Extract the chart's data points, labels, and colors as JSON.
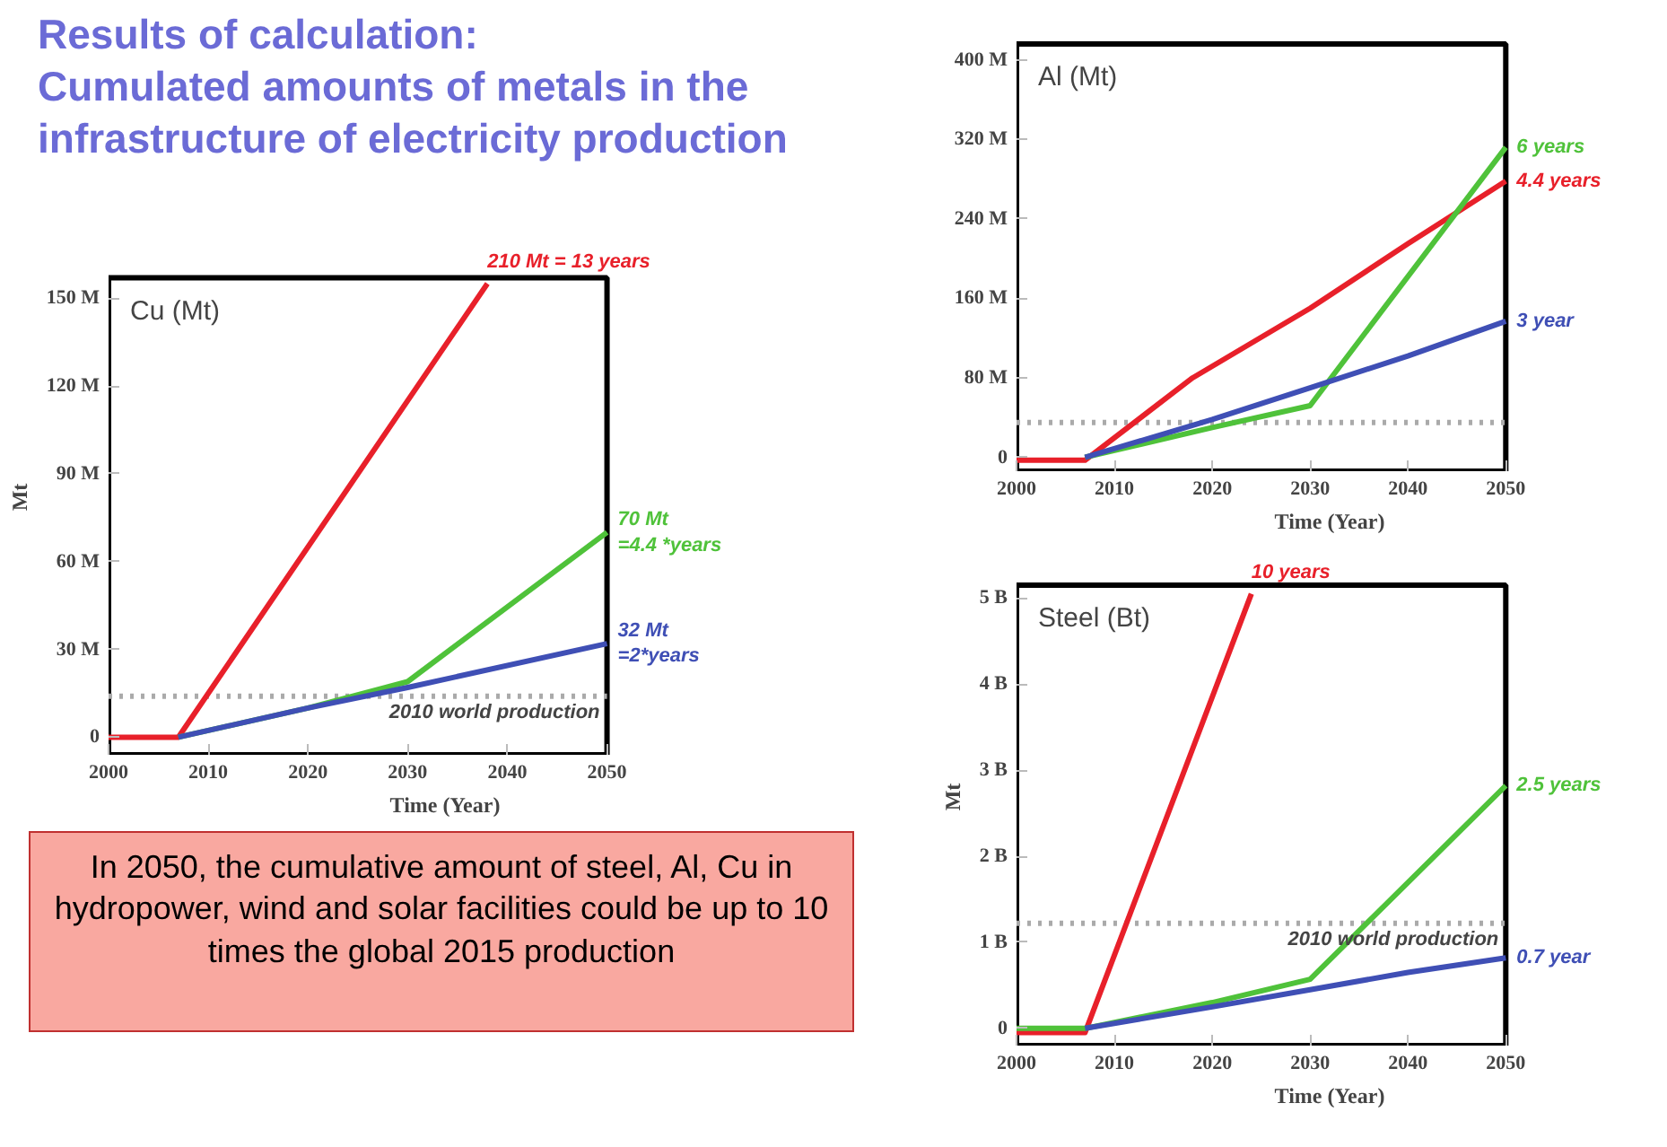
{
  "chart_data": [
    {
      "type": "other",
      "title": "Results of calculation:\nCumulated amounts of metals in the\ninfrastructure of electricity production",
      "annotations": [
        "In 2050, the cumulative amount of steel, Al, Cu in hydropower, wind and solar facilities could be up to 10 times the global 2015 production"
      ]
    },
    {
      "type": "line",
      "title": "Cu (Mt)",
      "xlabel": "Time (Year)",
      "ylabel": "Mt",
      "grid": false,
      "xlim": [
        2000,
        2050
      ],
      "xticks": [
        2000,
        2010,
        2020,
        2030,
        2040,
        2050
      ],
      "ylim": [
        -6,
        157
      ],
      "yticks": [
        0,
        {
          "value": 30,
          "label": "30 M"
        },
        {
          "value": 60,
          "label": "60 M"
        },
        {
          "value": 90,
          "label": "90 M"
        },
        {
          "value": 120,
          "label": "120 M"
        },
        {
          "value": 150,
          "label": "150 M"
        }
      ],
      "series": [
        {
          "color": "#e8202a",
          "x": [
            2000,
            2007,
            2038
          ],
          "values": [
            0,
            0,
            155
          ]
        },
        {
          "color": "#4fc23a",
          "x": [
            2007,
            2020,
            2030,
            2050
          ],
          "values": [
            0,
            10,
            19,
            70
          ]
        },
        {
          "color": "#3f4fb5",
          "x": [
            2007,
            2020,
            2030,
            2050
          ],
          "values": [
            0,
            10,
            17,
            32
          ]
        }
      ],
      "ref_lines": [
        {
          "axis": "y",
          "value": 14,
          "label": "2010 world production",
          "color": "#aaaaaa",
          "line_style": "dotted"
        }
      ],
      "annotations": [
        {
          "text": "210 Mt = 13 years",
          "x": 2038,
          "y": 155
        },
        {
          "text": "70 Mt\n=4.4 *years",
          "x": 2050,
          "y": 70
        },
        {
          "text": "32 Mt\n=2*years",
          "x": 2050,
          "y": 32
        }
      ]
    },
    {
      "type": "line",
      "title": "Al (Mt)",
      "xlabel": "Time (Year)",
      "grid": false,
      "xlim": [
        2000,
        2050
      ],
      "xticks": [
        2000,
        2010,
        2020,
        2030,
        2040,
        2050
      ],
      "ylim": [
        -14,
        416
      ],
      "yticks": [
        0,
        {
          "value": 80,
          "label": "80 M"
        },
        {
          "value": 160,
          "label": "160 M"
        },
        {
          "value": 240,
          "label": "240 M"
        },
        {
          "value": 320,
          "label": "320 M"
        },
        {
          "value": 400,
          "label": "400 M"
        }
      ],
      "series": [
        {
          "color": "#e8202a",
          "x": [
            2000,
            2007,
            2018,
            2030,
            2040,
            2050
          ],
          "values": [
            -3,
            -3,
            80,
            150,
            215,
            278
          ]
        },
        {
          "color": "#4fc23a",
          "x": [
            2007,
            2020,
            2030,
            2050
          ],
          "values": [
            0,
            30,
            52,
            312
          ]
        },
        {
          "color": "#3f4fb5",
          "x": [
            2007,
            2020,
            2030,
            2040,
            2050
          ],
          "values": [
            0,
            38,
            70,
            102,
            137
          ]
        }
      ],
      "ref_lines": [
        {
          "axis": "y",
          "value": 35,
          "color": "#aaaaaa",
          "line_style": "dotted"
        }
      ],
      "annotations": [
        {
          "text": "6 years",
          "x": 2050,
          "y": 312
        },
        {
          "text": "4.4 years",
          "x": 2050,
          "y": 278
        },
        {
          "text": "3 year",
          "x": 2050,
          "y": 137
        }
      ]
    },
    {
      "type": "line",
      "title": "Steel (Bt)",
      "xlabel": "Time (Year)",
      "ylabel": "Mt",
      "grid": false,
      "xlim": [
        2000,
        2050
      ],
      "xticks": [
        2000,
        2010,
        2020,
        2030,
        2040,
        2050
      ],
      "ylim": [
        -0.2,
        5.15
      ],
      "yticks": [
        0,
        {
          "value": 1,
          "label": "1 B"
        },
        {
          "value": 2,
          "label": "2 B"
        },
        {
          "value": 3,
          "label": "3 B"
        },
        {
          "value": 4,
          "label": "4 B"
        },
        {
          "value": 5,
          "label": "5 B"
        }
      ],
      "series": [
        {
          "color": "#e8202a",
          "x": [
            2000,
            2007,
            2024
          ],
          "values": [
            -0.05,
            -0.05,
            5.05
          ]
        },
        {
          "color": "#4fc23a",
          "x": [
            2000,
            2007,
            2020,
            2030,
            2050
          ],
          "values": [
            0,
            0,
            0.3,
            0.57,
            2.82
          ]
        },
        {
          "color": "#3f4fb5",
          "x": [
            2007,
            2020,
            2030,
            2040,
            2050
          ],
          "values": [
            0,
            0.25,
            0.45,
            0.65,
            0.82
          ]
        }
      ],
      "ref_lines": [
        {
          "axis": "y",
          "value": 1.22,
          "label": "2010 world production",
          "color": "#aaaaaa",
          "line_style": "dotted"
        }
      ],
      "annotations": [
        {
          "text": "10 years",
          "x": 2024,
          "y": 5.05
        },
        {
          "text": "2.5 years",
          "x": 2050,
          "y": 2.82
        },
        {
          "text": "0.7 year",
          "x": 2050,
          "y": 0.82
        }
      ]
    }
  ]
}
